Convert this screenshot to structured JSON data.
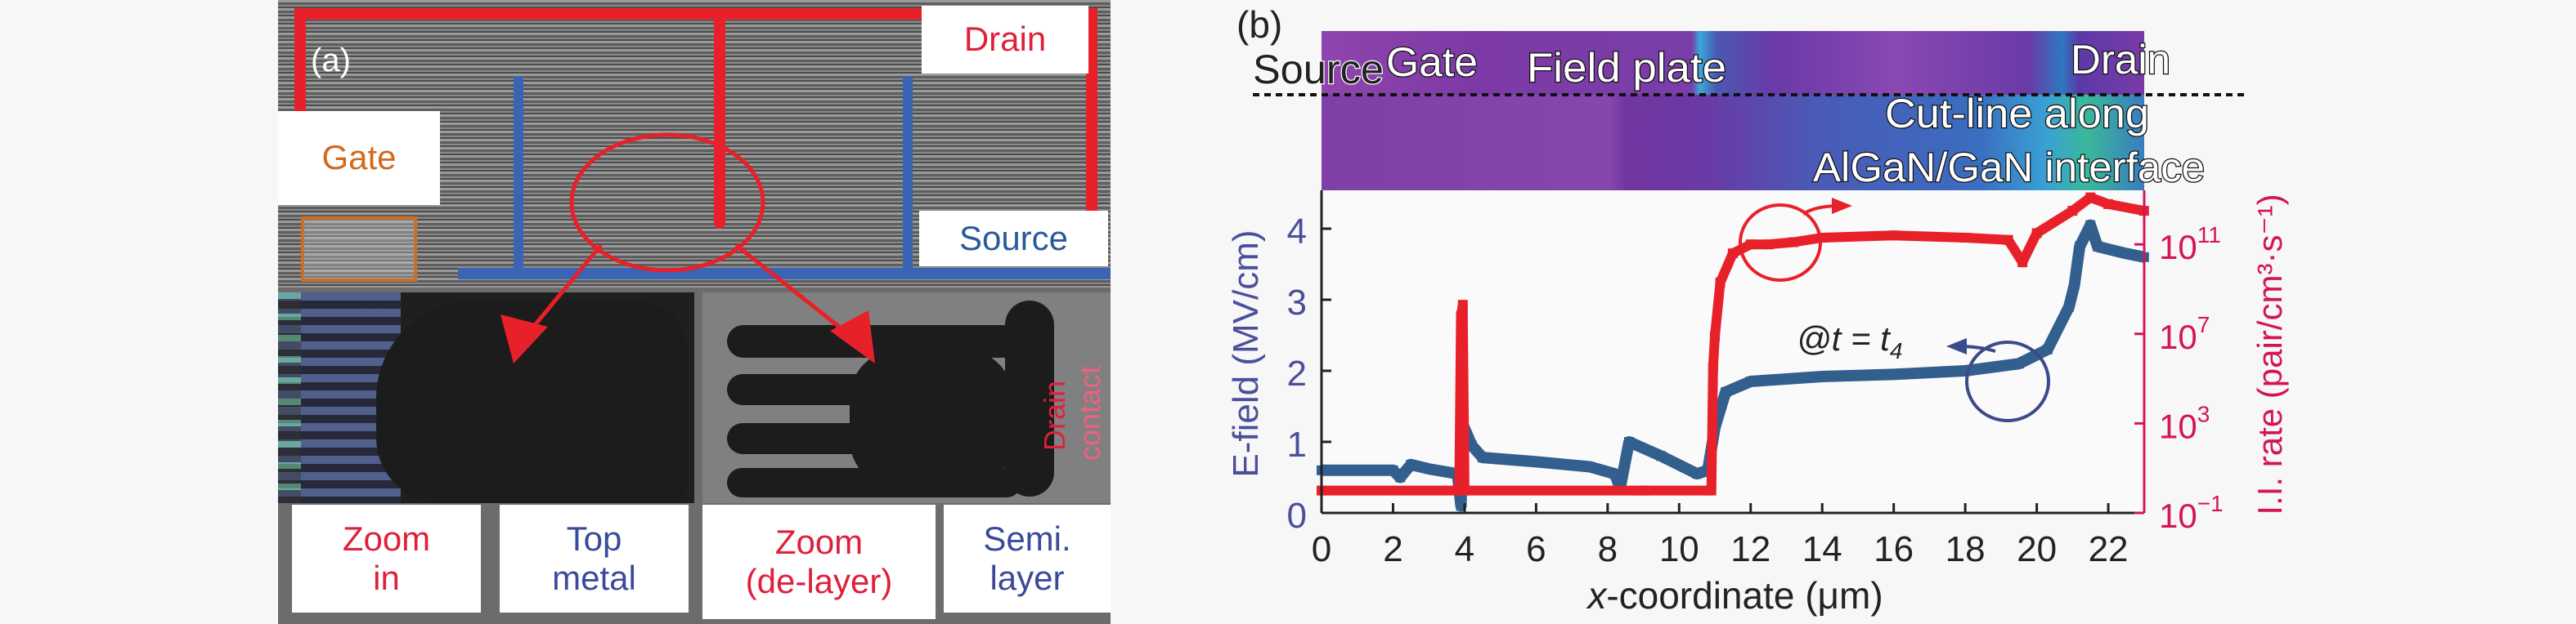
{
  "panel_a": {
    "label": "(a)",
    "gate": "Gate",
    "drain": "Drain",
    "source": "Source",
    "drain_contact_line1": "Drain",
    "drain_contact_line2": "contact",
    "zoom_in": [
      "Zoom",
      "in"
    ],
    "top_metal": [
      "Top",
      "metal"
    ],
    "zoom_delayer": [
      "Zoom",
      "(de-layer)"
    ],
    "semi_layer": [
      "Semi.",
      "layer"
    ],
    "colors": {
      "drain": "#e0203a",
      "source": "#2a5a9a",
      "gate": "#d2691e",
      "highlight_box": "#c8702a"
    }
  },
  "panel_b": {
    "label": "(b)",
    "map_labels": {
      "source": "Source",
      "gate": "Gate",
      "field_plate": "Field plate",
      "drain": "Drain",
      "cutline_1": "Cut-line along",
      "cutline_2": "AlGaN/GaN interface"
    },
    "annotation": "@t = t",
    "annotation_sub": "4"
  },
  "chart_data": {
    "type": "line",
    "xlabel_prefix": "x",
    "xlabel": "-coordinate (μm)",
    "ylabel": "E-field (MV/cm)",
    "ylabel_right": "I.I. rate (pair/cm³·s⁻¹)",
    "xlim": [
      0,
      23
    ],
    "ylim": [
      0,
      4.5
    ],
    "ylim_right_log10": [
      -1,
      13.4
    ],
    "y_right_scale": "log",
    "x_ticks": [
      "0",
      "2",
      "4",
      "6",
      "8",
      "10",
      "12",
      "14",
      "16",
      "18",
      "20",
      "22"
    ],
    "y_ticks": [
      "0",
      "1",
      "2",
      "3",
      "4"
    ],
    "y_right_ticks": [
      {
        "base": "10",
        "exp": "−1"
      },
      {
        "base": "10",
        "exp": "3"
      },
      {
        "base": "10",
        "exp": "7"
      },
      {
        "base": "10",
        "exp": "11"
      }
    ],
    "grid": false,
    "series": [
      {
        "axis": "left",
        "color": "#335f8f",
        "x": [
          0,
          1,
          2,
          2.2,
          2.5,
          3,
          3.8,
          3.9,
          3.95,
          4.2,
          4.5,
          6,
          7.5,
          8.2,
          8.35,
          8.6,
          9.5,
          10.5,
          10.8,
          11,
          11.3,
          12,
          14,
          16,
          18,
          19.5,
          20.3,
          20.9,
          21.05,
          21.2,
          21.5,
          21.7,
          22.5,
          23
        ],
        "y": [
          0.6,
          0.6,
          0.6,
          0.5,
          0.68,
          0.62,
          0.55,
          0.1,
          1.25,
          0.95,
          0.78,
          0.72,
          0.65,
          0.55,
          0.35,
          1.0,
          0.8,
          0.55,
          0.6,
          1.2,
          1.7,
          1.85,
          1.92,
          1.95,
          2.0,
          2.1,
          2.3,
          2.9,
          3.2,
          3.75,
          4.05,
          3.75,
          3.65,
          3.6
        ]
      },
      {
        "axis": "right",
        "color": "#e8202a",
        "x": [
          0,
          3.85,
          3.9,
          3.95,
          4.0,
          8.9,
          9.1,
          10.9,
          10.95,
          11.0,
          11.15,
          11.5,
          12,
          12.5,
          13.2,
          14,
          16,
          18,
          19.2,
          19.6,
          20,
          21,
          21.5,
          22,
          23
        ],
        "log10_y": [
          0,
          0,
          7.8,
          8.3,
          0,
          0,
          0,
          0,
          5.5,
          6.9,
          9.3,
          10.6,
          11,
          11,
          11.1,
          11.3,
          11.4,
          11.3,
          11.2,
          10.2,
          11.5,
          12.5,
          13.1,
          12.8,
          12.5
        ]
      }
    ]
  }
}
